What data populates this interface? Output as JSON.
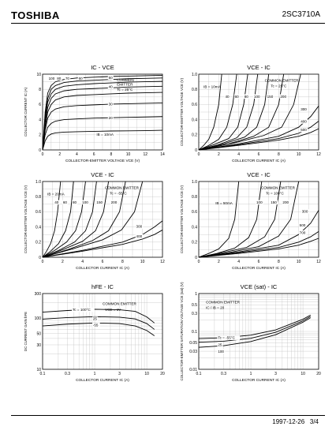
{
  "header": {
    "brand": "TOSHIBA",
    "part_number": "2SC3710A"
  },
  "footer": {
    "date": "1997-12-26",
    "page": "3/4"
  },
  "chart_data": [
    {
      "type": "line",
      "title": "IC - VCE",
      "xlabel": "COLLECTOR-EMITTER VOLTAGE  VCE  (V)",
      "ylabel": "COLLECTOR CURRENT  IC  (A)",
      "xlim": [
        0,
        14
      ],
      "ylim": [
        0,
        10
      ],
      "xticks": [
        "0",
        "2",
        "4",
        "6",
        "8",
        "10",
        "12",
        "14"
      ],
      "yticks": [
        "0",
        "2",
        "4",
        "6",
        "8",
        "10"
      ],
      "grid": true,
      "annotations": [
        "COMMON",
        "EMITTER",
        "Tc = 25°C"
      ],
      "curve_labels": [
        "100",
        "80",
        "70",
        "60",
        "50",
        "40",
        "30",
        "20",
        "IB = 10mA"
      ],
      "series": [
        {
          "label": "100",
          "x": [
            0,
            0.3,
            0.6,
            1,
            1.5,
            2.5,
            4,
            6,
            8,
            10,
            12,
            14
          ],
          "y": [
            0,
            5,
            7.5,
            8.5,
            9,
            9.3,
            9.5,
            9.6,
            9.7,
            9.75,
            9.8,
            9.85
          ]
        },
        {
          "label": "80",
          "x": [
            0,
            0.3,
            0.6,
            1,
            1.5,
            2.5,
            4,
            6,
            8,
            10,
            12,
            14
          ],
          "y": [
            0,
            4.5,
            6.8,
            8,
            8.5,
            8.9,
            9.1,
            9.2,
            9.3,
            9.4,
            9.45,
            9.5
          ]
        },
        {
          "label": "60",
          "x": [
            0,
            0.3,
            0.6,
            1,
            1.5,
            2.5,
            4,
            6,
            8,
            10,
            12,
            14
          ],
          "y": [
            0,
            4,
            6.3,
            7.4,
            8,
            8.4,
            8.6,
            8.75,
            8.85,
            8.95,
            9,
            9.05
          ]
        },
        {
          "label": "50",
          "x": [
            0,
            0.3,
            0.6,
            1,
            1.5,
            2.5,
            4,
            6,
            8,
            10,
            12,
            14
          ],
          "y": [
            0,
            3.5,
            5.6,
            6.8,
            7.4,
            7.8,
            8,
            8.1,
            8.2,
            8.3,
            8.35,
            8.4
          ]
        },
        {
          "label": "40",
          "x": [
            0,
            0.3,
            0.6,
            1,
            1.5,
            2.5,
            4,
            6,
            8,
            10,
            12,
            14
          ],
          "y": [
            0,
            3,
            5,
            6,
            6.6,
            7,
            7.2,
            7.3,
            7.4,
            7.5,
            7.55,
            7.6
          ]
        },
        {
          "label": "30",
          "x": [
            0,
            0.3,
            0.6,
            1,
            1.5,
            2.5,
            4,
            6,
            8,
            10,
            12,
            14
          ],
          "y": [
            0,
            2.6,
            4.2,
            5,
            5.4,
            5.7,
            5.85,
            5.95,
            6.05,
            6.1,
            6.15,
            6.2
          ]
        },
        {
          "label": "20",
          "x": [
            0,
            0.3,
            0.6,
            1,
            1.5,
            2.5,
            4,
            6,
            8,
            10,
            12,
            14
          ],
          "y": [
            0,
            2,
            3,
            3.5,
            3.8,
            4,
            4.1,
            4.2,
            4.25,
            4.3,
            4.35,
            4.4
          ]
        },
        {
          "label": "10",
          "x": [
            0,
            0.3,
            0.6,
            1,
            1.5,
            2.5,
            4,
            6,
            8,
            10,
            12,
            14
          ],
          "y": [
            0,
            1.2,
            1.8,
            2.1,
            2.25,
            2.35,
            2.4,
            2.45,
            2.5,
            2.52,
            2.55,
            2.6
          ]
        }
      ]
    },
    {
      "type": "line",
      "title": "VCE - IC",
      "xlabel": "COLLECTOR CURRENT  IC  (A)",
      "ylabel": "COLLECTOR-EMITTER VOLTAGE  VCE  (V)",
      "xlim": [
        0,
        12
      ],
      "ylim": [
        0,
        1.0
      ],
      "xticks": [
        "0",
        "2",
        "4",
        "6",
        "8",
        "10",
        "12"
      ],
      "yticks": [
        "0",
        "0.2",
        "0.4",
        "0.6",
        "0.8",
        "1.0"
      ],
      "grid": true,
      "annotations": [
        "COMMON EMITTER",
        "Tc = 25°C",
        "IB = 10mA"
      ],
      "curve_labels": [
        "40",
        "60",
        "80",
        "100",
        "150",
        "200",
        "300",
        "400",
        "500"
      ],
      "series": [
        {
          "label": "10",
          "x": [
            0,
            0.5,
            1,
            1.5,
            2,
            2.3
          ],
          "y": [
            0,
            0.06,
            0.14,
            0.3,
            0.6,
            1.0
          ]
        },
        {
          "label": "40",
          "x": [
            0,
            1,
            2,
            2.8,
            3.4,
            3.8
          ],
          "y": [
            0,
            0.06,
            0.14,
            0.3,
            0.6,
            1.0
          ]
        },
        {
          "label": "60",
          "x": [
            0,
            1.5,
            3,
            3.9,
            4.5,
            4.9
          ],
          "y": [
            0,
            0.07,
            0.15,
            0.3,
            0.6,
            1.0
          ]
        },
        {
          "label": "80",
          "x": [
            0,
            2,
            3.8,
            4.8,
            5.5,
            5.9
          ],
          "y": [
            0,
            0.07,
            0.16,
            0.3,
            0.6,
            1.0
          ]
        },
        {
          "label": "100",
          "x": [
            0,
            2.5,
            4.6,
            5.8,
            6.6,
            7
          ],
          "y": [
            0,
            0.08,
            0.17,
            0.3,
            0.6,
            1.0
          ]
        },
        {
          "label": "150",
          "x": [
            0,
            3,
            5.5,
            7,
            8,
            8.5
          ],
          "y": [
            0,
            0.08,
            0.18,
            0.3,
            0.6,
            1.0
          ]
        },
        {
          "label": "200",
          "x": [
            0,
            3.5,
            6.5,
            8.3,
            9.5,
            10.2
          ],
          "y": [
            0,
            0.09,
            0.19,
            0.3,
            0.6,
            1.0
          ]
        },
        {
          "label": "300",
          "x": [
            0,
            4,
            8,
            10,
            11.2,
            12
          ],
          "y": [
            0,
            0.08,
            0.18,
            0.3,
            0.44,
            0.58
          ]
        },
        {
          "label": "400",
          "x": [
            0,
            4,
            8,
            10,
            11.2,
            12
          ],
          "y": [
            0,
            0.07,
            0.15,
            0.22,
            0.3,
            0.38
          ]
        },
        {
          "label": "500",
          "x": [
            0,
            4,
            8,
            10,
            11.2,
            12
          ],
          "y": [
            0,
            0.06,
            0.13,
            0.18,
            0.23,
            0.28
          ]
        }
      ]
    },
    {
      "type": "line",
      "title": "VCE - IC",
      "xlabel": "COLLECTOR CURRENT  IC  (A)",
      "ylabel": "COLLECTOR-EMITTER VOLTAGE  VCE  (V)",
      "xlim": [
        0,
        12
      ],
      "ylim": [
        0,
        1.0
      ],
      "xticks": [
        "0",
        "2",
        "4",
        "6",
        "8",
        "10",
        "12"
      ],
      "yticks": [
        "0",
        "0.2",
        "0.4",
        "0.6",
        "0.8",
        "1.0"
      ],
      "grid": true,
      "annotations": [
        "COMMON EMITTER",
        "Tc = -55°C",
        "IB = 20mA"
      ],
      "curve_labels": [
        "40",
        "60",
        "80",
        "100",
        "150",
        "200",
        "300",
        "400"
      ],
      "series": [
        {
          "label": "20",
          "x": [
            0,
            0.4,
            0.8,
            1.2,
            1.5,
            1.8
          ],
          "y": [
            0,
            0.08,
            0.18,
            0.35,
            0.6,
            1.0
          ]
        },
        {
          "label": "40",
          "x": [
            0,
            0.8,
            1.6,
            2.3,
            2.8,
            3.1
          ],
          "y": [
            0,
            0.08,
            0.18,
            0.35,
            0.6,
            1.0
          ]
        },
        {
          "label": "60",
          "x": [
            0,
            1.2,
            2.4,
            3.3,
            3.9,
            4.3
          ],
          "y": [
            0,
            0.09,
            0.2,
            0.35,
            0.6,
            1.0
          ]
        },
        {
          "label": "80",
          "x": [
            0,
            1.6,
            3.2,
            4.3,
            5,
            5.4
          ],
          "y": [
            0,
            0.09,
            0.2,
            0.35,
            0.6,
            1.0
          ]
        },
        {
          "label": "100",
          "x": [
            0,
            2,
            4,
            5.3,
            6.1,
            6.6
          ],
          "y": [
            0,
            0.1,
            0.21,
            0.35,
            0.6,
            1.0
          ]
        },
        {
          "label": "150",
          "x": [
            0,
            2.5,
            5,
            6.6,
            7.7,
            8.3
          ],
          "y": [
            0,
            0.1,
            0.22,
            0.35,
            0.6,
            1.0
          ]
        },
        {
          "label": "200",
          "x": [
            0,
            3,
            6,
            7.9,
            9.2,
            10
          ],
          "y": [
            0,
            0.11,
            0.23,
            0.36,
            0.6,
            1.0
          ]
        },
        {
          "label": "300",
          "x": [
            0,
            4,
            8,
            10,
            11.2,
            12
          ],
          "y": [
            0,
            0.09,
            0.2,
            0.3,
            0.4,
            0.48
          ]
        },
        {
          "label": "400",
          "x": [
            0,
            4,
            8,
            10,
            11.2,
            12
          ],
          "y": [
            0,
            0.08,
            0.17,
            0.24,
            0.3,
            0.36
          ]
        }
      ]
    },
    {
      "type": "line",
      "title": "VCE - IC",
      "xlabel": "COLLECTOR CURRENT  IC  (A)",
      "ylabel": "COLLECTOR-EMITTER VOLTAGE  VCE  (V)",
      "xlim": [
        0,
        12
      ],
      "ylim": [
        0,
        1.0
      ],
      "xticks": [
        "0",
        "2",
        "4",
        "6",
        "8",
        "10",
        "12"
      ],
      "yticks": [
        "0",
        "0.2",
        "0.4",
        "0.6",
        "0.8",
        "1.0"
      ],
      "grid": true,
      "annotations": [
        "COMMON EMITTER",
        "Tc = 100°C",
        "IB = 50mA"
      ],
      "curve_labels": [
        "100",
        "150",
        "200",
        "300",
        "500",
        "700"
      ],
      "series": [
        {
          "label": "50",
          "x": [
            0,
            1,
            2,
            3,
            3.6,
            4
          ],
          "y": [
            0,
            0.05,
            0.11,
            0.25,
            0.5,
            1.0
          ]
        },
        {
          "label": "100",
          "x": [
            0,
            1.8,
            3.6,
            5,
            5.8,
            6.3
          ],
          "y": [
            0,
            0.05,
            0.12,
            0.26,
            0.5,
            1.0
          ]
        },
        {
          "label": "150",
          "x": [
            0,
            2.4,
            4.8,
            6.6,
            7.6,
            8.2
          ],
          "y": [
            0,
            0.06,
            0.13,
            0.27,
            0.5,
            1.0
          ]
        },
        {
          "label": "200",
          "x": [
            0,
            3,
            6,
            8,
            9.2,
            10
          ],
          "y": [
            0,
            0.06,
            0.14,
            0.28,
            0.5,
            1.0
          ]
        },
        {
          "label": "300",
          "x": [
            0,
            4,
            8,
            10,
            11.2,
            12
          ],
          "y": [
            0,
            0.07,
            0.16,
            0.3,
            0.45,
            0.62
          ]
        },
        {
          "label": "500",
          "x": [
            0,
            4,
            8,
            10,
            11.2,
            12
          ],
          "y": [
            0,
            0.06,
            0.13,
            0.2,
            0.27,
            0.34
          ]
        },
        {
          "label": "700",
          "x": [
            0,
            4,
            8,
            10,
            11.2,
            12
          ],
          "y": [
            0,
            0.05,
            0.11,
            0.16,
            0.21,
            0.25
          ]
        }
      ]
    },
    {
      "type": "line",
      "title": "hFE - IC",
      "xlabel": "COLLECTOR CURRENT  IC  (A)",
      "ylabel": "DC CURRENT GAIN  hFE",
      "xscale": "log",
      "yscale": "log",
      "xlim": [
        0.1,
        20
      ],
      "ylim": [
        10,
        300
      ],
      "xticks": [
        "0.1",
        "0.3",
        "1",
        "3",
        "10",
        "20"
      ],
      "yticks": [
        "10",
        "30",
        "50",
        "100",
        "300"
      ],
      "grid": true,
      "annotations": [
        "COMMON EMITTER",
        "VCE = 1V"
      ],
      "curve_labels": [
        "Tc = 100°C",
        "25",
        "-55"
      ],
      "series": [
        {
          "label": "Tc = 100°C",
          "x": [
            0.1,
            0.3,
            1,
            3,
            6,
            10,
            14
          ],
          "y": [
            130,
            140,
            148,
            145,
            135,
            105,
            80
          ]
        },
        {
          "label": "25",
          "x": [
            0.1,
            0.3,
            1,
            3,
            6,
            10,
            14
          ],
          "y": [
            95,
            102,
            106,
            104,
            96,
            78,
            60
          ]
        },
        {
          "label": "-55",
          "x": [
            0.1,
            0.3,
            1,
            3,
            6,
            10,
            14
          ],
          "y": [
            70,
            76,
            80,
            78,
            70,
            57,
            45
          ]
        }
      ]
    },
    {
      "type": "line",
      "title": "VCE (sat) - IC",
      "xlabel": "COLLECTOR CURRENT  IC  (A)",
      "ylabel": "COLLECTOR-EMITTER SATURATION VOLTAGE  VCE (sat)  (V)",
      "xscale": "log",
      "yscale": "log",
      "xlim": [
        0.1,
        20
      ],
      "ylim": [
        0.01,
        1
      ],
      "xticks": [
        "0.1",
        "0.3",
        "1",
        "3",
        "10",
        "20"
      ],
      "yticks": [
        "0.01",
        "0.03",
        "0.05",
        "0.1",
        "0.3",
        "0.5",
        "1"
      ],
      "grid": true,
      "annotations": [
        "COMMON EMITTER",
        "IC / IB = 20"
      ],
      "curve_labels": [
        "Tc = -55°C",
        "25",
        "100"
      ],
      "series": [
        {
          "label": "Tc = -55°C",
          "x": [
            0.1,
            0.3,
            1,
            3,
            10,
            14
          ],
          "y": [
            0.065,
            0.068,
            0.08,
            0.11,
            0.21,
            0.27
          ]
        },
        {
          "label": "25",
          "x": [
            0.1,
            0.3,
            1,
            3,
            10,
            14
          ],
          "y": [
            0.052,
            0.055,
            0.066,
            0.095,
            0.19,
            0.25
          ]
        },
        {
          "label": "100",
          "x": [
            0.1,
            0.3,
            1,
            3,
            10,
            14
          ],
          "y": [
            0.038,
            0.042,
            0.054,
            0.082,
            0.175,
            0.23
          ]
        }
      ]
    }
  ]
}
